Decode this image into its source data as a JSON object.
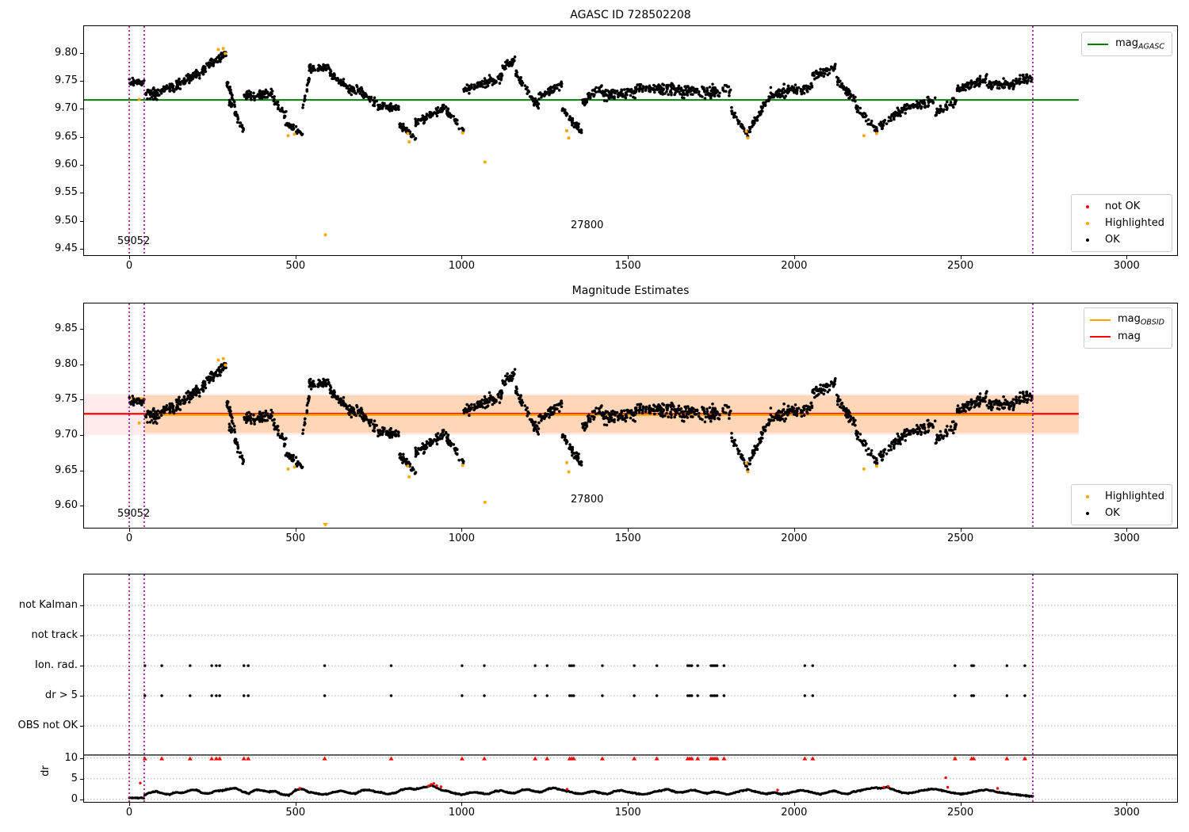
{
  "colors": {
    "green": "#008000",
    "red": "#ff0000",
    "orange": "#ffa500",
    "black": "#000000",
    "purple": "#990099",
    "band_pink": "rgba(255,0,0,0.08)",
    "band_salmon": "rgba(255,140,0,0.22)",
    "grid": "#b0b0b0",
    "axis": "#000000"
  },
  "chart_data": {
    "seed": 42,
    "xlim": [
      -136,
      3152
    ],
    "panels": [
      {
        "type": "scatter",
        "title": "AGASC ID 728502208",
        "ylim": [
          9.4387,
          9.8478
        ],
        "xticks": [
          0,
          500,
          1000,
          1500,
          2000,
          2500,
          3000
        ],
        "yticks": [
          9.8,
          9.75,
          9.7,
          9.65,
          9.6,
          9.55,
          9.5,
          9.45
        ],
        "ref_line": {
          "name": "mag_AGASC",
          "y": 9.716,
          "x0": -136,
          "x1": 2856
        },
        "vlines": [
          0,
          45,
          2718
        ],
        "annotations": [
          {
            "text": "59052",
            "x": -36,
            "y": 9.4628
          },
          {
            "text": "27800",
            "x": 1328,
            "y": 9.491
          }
        ],
        "legend_lines": [
          {
            "main": "mag",
            "sub": "AGASC",
            "color_key": "green"
          }
        ],
        "legend_markers": [
          {
            "label": "not OK",
            "color_key": "red"
          },
          {
            "label": "Highlighted",
            "color_key": "orange"
          },
          {
            "label": "OK",
            "color_key": "black"
          }
        ]
      },
      {
        "type": "scatter",
        "title": "Magnitude Estimates",
        "ylim": [
          9.569,
          9.886
        ],
        "xticks": [
          0,
          500,
          1000,
          1500,
          2000,
          2500,
          3000
        ],
        "yticks": [
          9.85,
          9.8,
          9.75,
          9.7,
          9.65,
          9.6
        ],
        "mag_line": {
          "name": "mag",
          "y": 9.73,
          "x0": -136,
          "x1": 2856
        },
        "band_global": {
          "y0": 9.7,
          "y1": 9.758,
          "x0": -136,
          "x1": 2856
        },
        "band_obsid": {
          "y0": 9.703,
          "y1": 9.756,
          "x0": 45,
          "x1": 2856
        },
        "obsid_segments": [
          {
            "x0": 0,
            "x1": 45,
            "y": 9.752
          },
          {
            "x0": 45,
            "x1": 2718,
            "y": 9.7285
          }
        ],
        "vlines": [
          0,
          45,
          2718
        ],
        "annotations": [
          {
            "text": "59052",
            "x": -36,
            "y": 9.588
          },
          {
            "text": "27800",
            "x": 1328,
            "y": 9.608
          }
        ],
        "legend_lines": [
          {
            "main": "mag",
            "sub": "OBSID",
            "color_key": "orange"
          },
          {
            "main": "mag",
            "sub": "",
            "color_key": "red"
          }
        ],
        "legend_markers": [
          {
            "label": "Highlighted",
            "color_key": "orange"
          },
          {
            "label": "OK",
            "color_key": "black"
          }
        ]
      },
      {
        "type": "scatter",
        "title": "",
        "ylabel": "dr",
        "categories": [
          "not Kalman",
          "not track",
          "Ion. rad.",
          "dr > 5",
          "OBS not OK"
        ],
        "dr_ticks": [
          10,
          5,
          0
        ],
        "xticks": [
          0,
          500,
          1000,
          1500,
          2000,
          2500,
          3000
        ],
        "flag_x": [
          47,
          98,
          183,
          248,
          262,
          272,
          345,
          358,
          588,
          788,
          1001,
          1068,
          1221,
          1257,
          1325,
          1331,
          1337,
          1423,
          1519,
          1587,
          1680,
          1686,
          1692,
          1710,
          1750,
          1756,
          1762,
          1768,
          1789,
          2032,
          2056,
          2484,
          2534,
          2540,
          2640,
          2694
        ],
        "over10_x": [
          47,
          98,
          183,
          248,
          262,
          272,
          345,
          358,
          588,
          788,
          1001,
          1068,
          1221,
          1257,
          1325,
          1331,
          1337,
          1423,
          1519,
          1587,
          1680,
          1686,
          1692,
          1710,
          1750,
          1756,
          1762,
          1768,
          1789,
          2032,
          2056,
          2484,
          2534,
          2540,
          2640,
          2694
        ],
        "dr_red_points": [
          [
            33,
            3.9
          ],
          [
            513,
            2.6
          ],
          [
            900,
            3.2
          ],
          [
            908,
            3.6
          ],
          [
            916,
            3.8
          ],
          [
            925,
            3.3
          ],
          [
            938,
            3.0
          ],
          [
            1317,
            2.4
          ],
          [
            1950,
            2.2
          ],
          [
            2270,
            2.9
          ],
          [
            2283,
            3.1
          ],
          [
            2456,
            5.2
          ],
          [
            2462,
            2.9
          ],
          [
            2612,
            2.6
          ]
        ],
        "dr_profile": [
          [
            0,
            0.3
          ],
          [
            44,
            0.3
          ],
          [
            46,
            1.0
          ],
          [
            60,
            1.6
          ],
          [
            80,
            1.9
          ],
          [
            100,
            1.4
          ],
          [
            120,
            1.1
          ],
          [
            140,
            1.7
          ],
          [
            160,
            1.5
          ],
          [
            180,
            2.1
          ],
          [
            200,
            2.3
          ],
          [
            220,
            1.5
          ],
          [
            240,
            1.3
          ],
          [
            260,
            2.0
          ],
          [
            280,
            2.1
          ],
          [
            300,
            2.5
          ],
          [
            320,
            2.7
          ],
          [
            340,
            1.8
          ],
          [
            360,
            1.4
          ],
          [
            380,
            2.3
          ],
          [
            400,
            2.1
          ],
          [
            420,
            1.8
          ],
          [
            440,
            1.9
          ],
          [
            460,
            1.1
          ],
          [
            480,
            0.9
          ],
          [
            500,
            2.2
          ],
          [
            520,
            2.5
          ],
          [
            540,
            1.7
          ],
          [
            560,
            1.5
          ],
          [
            580,
            1.1
          ],
          [
            600,
            1.3
          ],
          [
            620,
            1.8
          ],
          [
            640,
            2.0
          ],
          [
            660,
            1.5
          ],
          [
            680,
            1.3
          ],
          [
            700,
            2.1
          ],
          [
            720,
            2.3
          ],
          [
            740,
            1.8
          ],
          [
            760,
            1.6
          ],
          [
            780,
            1.2
          ],
          [
            800,
            1.5
          ],
          [
            820,
            2.3
          ],
          [
            840,
            2.6
          ],
          [
            860,
            2.4
          ],
          [
            880,
            2.8
          ],
          [
            900,
            3.1
          ],
          [
            910,
            3.4
          ],
          [
            920,
            2.9
          ],
          [
            940,
            2.2
          ],
          [
            960,
            1.9
          ],
          [
            980,
            1.4
          ],
          [
            1000,
            1.1
          ],
          [
            1020,
            1.5
          ],
          [
            1040,
            1.7
          ],
          [
            1060,
            1.4
          ],
          [
            1080,
            1.2
          ],
          [
            1100,
            1.9
          ],
          [
            1120,
            2.1
          ],
          [
            1140,
            1.6
          ],
          [
            1160,
            1.4
          ],
          [
            1180,
            2.2
          ],
          [
            1200,
            2.4
          ],
          [
            1220,
            1.9
          ],
          [
            1240,
            1.7
          ],
          [
            1260,
            2.5
          ],
          [
            1280,
            2.7
          ],
          [
            1300,
            2.2
          ],
          [
            1320,
            1.9
          ],
          [
            1340,
            1.5
          ],
          [
            1360,
            1.3
          ],
          [
            1380,
            1.7
          ],
          [
            1400,
            1.9
          ],
          [
            1420,
            1.4
          ],
          [
            1440,
            1.2
          ],
          [
            1460,
            1.9
          ],
          [
            1480,
            2.2
          ],
          [
            1500,
            1.7
          ],
          [
            1520,
            1.5
          ],
          [
            1540,
            1.1
          ],
          [
            1560,
            1.3
          ],
          [
            1580,
            1.8
          ],
          [
            1600,
            2.1
          ],
          [
            1620,
            2.4
          ],
          [
            1640,
            1.8
          ],
          [
            1660,
            1.6
          ],
          [
            1680,
            2.0
          ],
          [
            1700,
            2.2
          ],
          [
            1720,
            1.7
          ],
          [
            1740,
            1.4
          ],
          [
            1760,
            1.8
          ],
          [
            1780,
            1.5
          ],
          [
            1800,
            1.1
          ],
          [
            1820,
            1.6
          ],
          [
            1840,
            2.0
          ],
          [
            1860,
            2.3
          ],
          [
            1880,
            1.9
          ],
          [
            1900,
            1.5
          ],
          [
            1920,
            1.3
          ],
          [
            1940,
            1.7
          ],
          [
            1960,
            1.2
          ],
          [
            1980,
            1.4
          ],
          [
            2000,
            1.8
          ],
          [
            2020,
            2.2
          ],
          [
            2040,
            1.9
          ],
          [
            2060,
            1.5
          ],
          [
            2080,
            1.2
          ],
          [
            2100,
            1.7
          ],
          [
            2120,
            2.0
          ],
          [
            2140,
            1.5
          ],
          [
            2160,
            1.2
          ],
          [
            2180,
            1.8
          ],
          [
            2200,
            2.1
          ],
          [
            2220,
            2.5
          ],
          [
            2240,
            2.8
          ],
          [
            2260,
            2.6
          ],
          [
            2280,
            2.9
          ],
          [
            2300,
            2.3
          ],
          [
            2320,
            1.7
          ],
          [
            2340,
            1.4
          ],
          [
            2360,
            1.6
          ],
          [
            2380,
            2.0
          ],
          [
            2400,
            2.3
          ],
          [
            2420,
            2.5
          ],
          [
            2440,
            2.2
          ],
          [
            2460,
            1.8
          ],
          [
            2480,
            1.5
          ],
          [
            2500,
            1.2
          ],
          [
            2520,
            1.4
          ],
          [
            2540,
            1.8
          ],
          [
            2560,
            2.1
          ],
          [
            2580,
            2.3
          ],
          [
            2600,
            2.0
          ],
          [
            2620,
            1.6
          ],
          [
            2640,
            1.4
          ],
          [
            2660,
            1.2
          ],
          [
            2680,
            1.0
          ],
          [
            2700,
            0.8
          ],
          [
            2718,
            0.7
          ]
        ],
        "vlines": [
          0,
          45,
          2718
        ]
      }
    ],
    "scatter_segments": [
      [
        0,
        45,
        9.748,
        9.748,
        0.01,
        40
      ],
      [
        48,
        95,
        9.727,
        9.727,
        0.013,
        46
      ],
      [
        95,
        150,
        9.733,
        9.742,
        0.012,
        52
      ],
      [
        150,
        230,
        9.744,
        9.772,
        0.012,
        80
      ],
      [
        230,
        292,
        9.775,
        9.798,
        0.01,
        62
      ],
      [
        292,
        318,
        9.752,
        9.708,
        0.01,
        25
      ],
      [
        300,
        345,
        9.712,
        9.663,
        0.01,
        38
      ],
      [
        345,
        432,
        9.722,
        9.728,
        0.013,
        72
      ],
      [
        432,
        472,
        9.717,
        9.688,
        0.01,
        30
      ],
      [
        470,
        522,
        9.678,
        9.653,
        0.008,
        34
      ],
      [
        522,
        542,
        9.705,
        9.755,
        0.012,
        17
      ],
      [
        540,
        602,
        9.773,
        9.773,
        0.01,
        55
      ],
      [
        602,
        662,
        9.764,
        9.736,
        0.011,
        52
      ],
      [
        660,
        702,
        9.735,
        9.733,
        0.011,
        36
      ],
      [
        700,
        762,
        9.728,
        9.7,
        0.011,
        46
      ],
      [
        760,
        812,
        9.704,
        9.7,
        0.01,
        40
      ],
      [
        812,
        862,
        9.672,
        9.647,
        0.009,
        34
      ],
      [
        860,
        952,
        9.674,
        9.703,
        0.011,
        70
      ],
      [
        950,
        1008,
        9.7,
        9.66,
        0.01,
        36
      ],
      [
        1005,
        1122,
        9.733,
        9.757,
        0.013,
        92
      ],
      [
        1122,
        1162,
        9.775,
        9.787,
        0.01,
        30
      ],
      [
        1162,
        1232,
        9.762,
        9.703,
        0.011,
        50
      ],
      [
        1232,
        1302,
        9.722,
        9.744,
        0.012,
        58
      ],
      [
        1302,
        1362,
        9.7,
        9.657,
        0.01,
        44
      ],
      [
        1362,
        1422,
        9.71,
        9.742,
        0.011,
        44
      ],
      [
        1422,
        1522,
        9.726,
        9.726,
        0.015,
        85
      ],
      [
        1522,
        1642,
        9.736,
        9.736,
        0.014,
        92
      ],
      [
        1642,
        1810,
        9.73,
        9.734,
        0.016,
        118
      ],
      [
        1810,
        1862,
        9.698,
        9.652,
        0.009,
        32
      ],
      [
        1862,
        1925,
        9.66,
        9.72,
        0.01,
        44
      ],
      [
        1925,
        2055,
        9.728,
        9.736,
        0.014,
        95
      ],
      [
        2055,
        2125,
        9.76,
        9.775,
        0.012,
        55
      ],
      [
        2125,
        2185,
        9.756,
        9.715,
        0.012,
        44
      ],
      [
        2185,
        2255,
        9.705,
        9.655,
        0.01,
        40
      ],
      [
        2255,
        2330,
        9.668,
        9.7,
        0.012,
        52
      ],
      [
        2330,
        2425,
        9.7,
        9.718,
        0.012,
        64
      ],
      [
        2425,
        2490,
        9.692,
        9.716,
        0.011,
        44
      ],
      [
        2490,
        2580,
        9.734,
        9.752,
        0.013,
        70
      ],
      [
        2580,
        2662,
        9.744,
        9.744,
        0.013,
        64
      ],
      [
        2662,
        2718,
        9.75,
        9.756,
        0.012,
        44
      ]
    ],
    "highlighted_points": [
      [
        30,
        9.717
      ],
      [
        268,
        9.806
      ],
      [
        283,
        9.808
      ],
      [
        289,
        9.799
      ],
      [
        478,
        9.652
      ],
      [
        497,
        9.655
      ],
      [
        590,
        9.475
      ],
      [
        838,
        9.656
      ],
      [
        842,
        9.641
      ],
      [
        1003,
        9.657
      ],
      [
        1070,
        9.605
      ],
      [
        1316,
        9.661
      ],
      [
        1322,
        9.648
      ],
      [
        1856,
        9.66
      ],
      [
        1861,
        9.648
      ],
      [
        2210,
        9.652
      ],
      [
        2248,
        9.656
      ]
    ]
  }
}
